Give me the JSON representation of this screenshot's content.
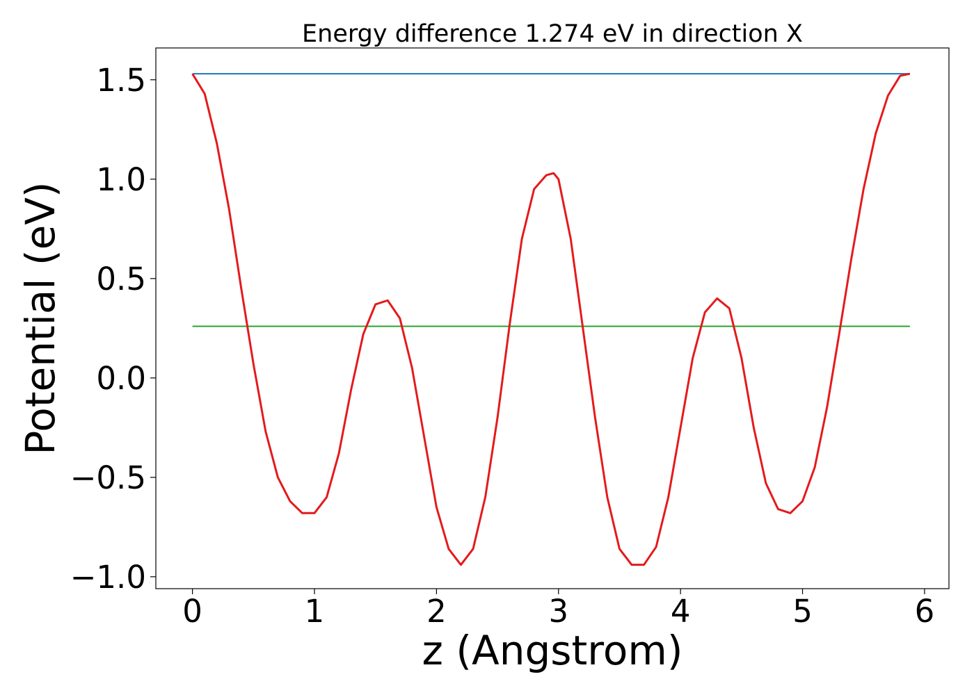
{
  "chart_data": {
    "type": "line",
    "title": "Energy difference 1.274 eV in direction X",
    "xlabel": "z (Angstrom)",
    "ylabel": "Potential (eV)",
    "xlim": [
      -0.3,
      6.2
    ],
    "ylim": [
      -1.06,
      1.66
    ],
    "xticks": [
      0,
      1,
      2,
      3,
      4,
      5,
      6
    ],
    "xtick_labels": [
      "0",
      "1",
      "2",
      "3",
      "4",
      "5",
      "6"
    ],
    "yticks": [
      -1.0,
      -0.5,
      0.0,
      0.5,
      1.0,
      1.5
    ],
    "ytick_labels": [
      "−1.0",
      "−0.5",
      "0.0",
      "0.5",
      "1.0",
      "1.5"
    ],
    "grid": false,
    "series": [
      {
        "color": "#1f77b4",
        "x": [
          0.0,
          5.88
        ],
        "y": [
          1.53,
          1.53
        ]
      },
      {
        "color": "#2ca02c",
        "x": [
          0.0,
          5.88
        ],
        "y": [
          0.26,
          0.26
        ]
      },
      {
        "color": "#e41a1c",
        "x": [
          0.0,
          0.1,
          0.2,
          0.3,
          0.4,
          0.5,
          0.6,
          0.7,
          0.8,
          0.9,
          1.0,
          1.1,
          1.2,
          1.3,
          1.4,
          1.5,
          1.6,
          1.7,
          1.8,
          1.9,
          2.0,
          2.1,
          2.2,
          2.3,
          2.4,
          2.5,
          2.6,
          2.7,
          2.8,
          2.9,
          2.96,
          3.0,
          3.1,
          3.2,
          3.3,
          3.4,
          3.5,
          3.6,
          3.7,
          3.8,
          3.9,
          4.0,
          4.1,
          4.2,
          4.3,
          4.4,
          4.5,
          4.6,
          4.7,
          4.8,
          4.9,
          5.0,
          5.1,
          5.2,
          5.3,
          5.4,
          5.5,
          5.6,
          5.7,
          5.8,
          5.88
        ],
        "y": [
          1.53,
          1.43,
          1.18,
          0.85,
          0.45,
          0.07,
          -0.27,
          -0.5,
          -0.62,
          -0.68,
          -0.68,
          -0.6,
          -0.38,
          -0.06,
          0.22,
          0.37,
          0.39,
          0.3,
          0.05,
          -0.3,
          -0.65,
          -0.86,
          -0.94,
          -0.86,
          -0.6,
          -0.2,
          0.27,
          0.7,
          0.95,
          1.02,
          1.03,
          1.0,
          0.7,
          0.25,
          -0.2,
          -0.6,
          -0.86,
          -0.94,
          -0.94,
          -0.85,
          -0.6,
          -0.25,
          0.1,
          0.33,
          0.4,
          0.35,
          0.1,
          -0.25,
          -0.53,
          -0.66,
          -0.68,
          -0.62,
          -0.45,
          -0.15,
          0.22,
          0.6,
          0.95,
          1.23,
          1.42,
          1.52,
          1.53
        ]
      }
    ]
  }
}
